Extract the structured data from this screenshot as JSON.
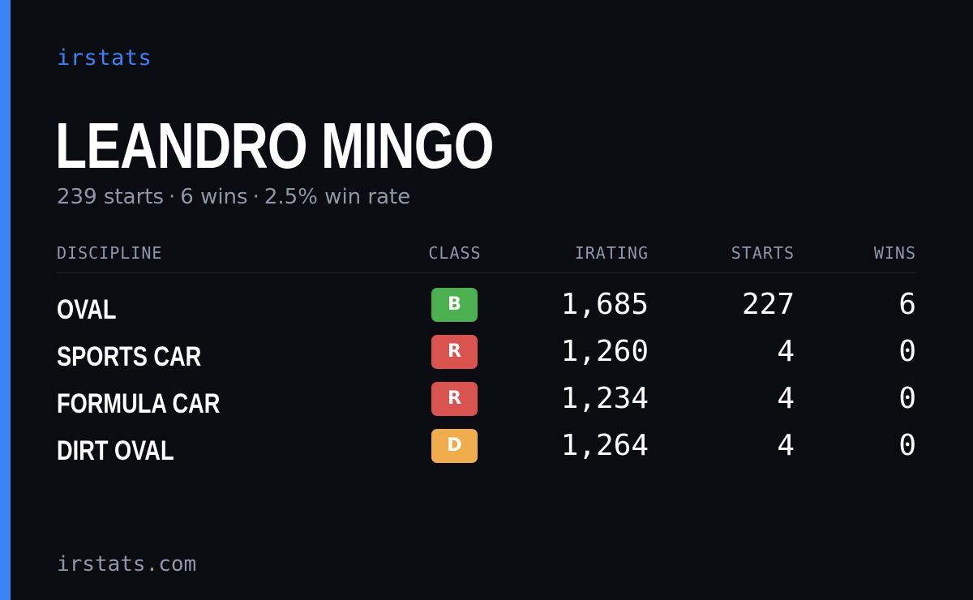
{
  "brand": "irstats",
  "player": {
    "name": "LEANDRO MINGO",
    "starts_text": "239 starts",
    "wins_text": "6 wins",
    "winrate_text": "2.5% win rate",
    "separator": "·"
  },
  "table": {
    "headers": {
      "discipline": "DISCIPLINE",
      "class": "CLASS",
      "irating": "IRATING",
      "starts": "STARTS",
      "wins": "WINS"
    },
    "rows": [
      {
        "discipline": "OVAL",
        "class": "B",
        "class_color": "#4cb050",
        "irating": "1,685",
        "starts": "227",
        "wins": "6"
      },
      {
        "discipline": "SPORTS CAR",
        "class": "R",
        "class_color": "#d9534f",
        "irating": "1,260",
        "starts": "4",
        "wins": "0"
      },
      {
        "discipline": "FORMULA CAR",
        "class": "R",
        "class_color": "#d9534f",
        "irating": "1,234",
        "starts": "4",
        "wins": "0"
      },
      {
        "discipline": "DIRT OVAL",
        "class": "D",
        "class_color": "#f0ad4e",
        "irating": "1,264",
        "starts": "4",
        "wins": "0"
      }
    ]
  },
  "footer": "irstats.com",
  "colors": {
    "accent": "#3b82f6",
    "background": "#0a0c12",
    "muted_text": "#8e97a8"
  }
}
